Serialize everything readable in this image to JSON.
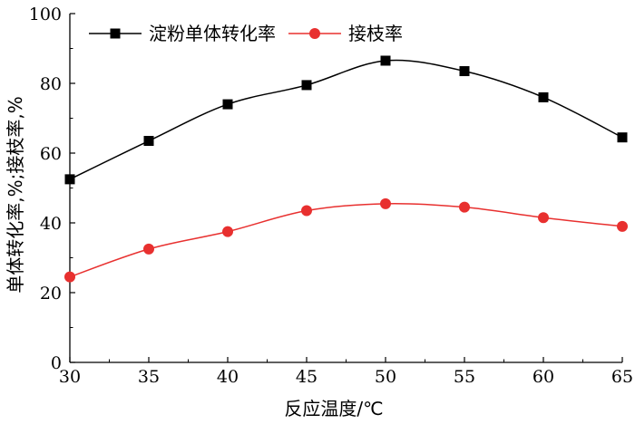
{
  "chart_data": {
    "type": "line",
    "x": [
      30,
      35,
      40,
      45,
      50,
      55,
      60,
      65
    ],
    "series": [
      {
        "name": "淀粉单体转化率",
        "values": [
          52.5,
          63.5,
          74.0,
          79.5,
          86.5,
          83.5,
          76.0,
          64.5
        ],
        "color": "#000000",
        "marker": "square"
      },
      {
        "name": "接枝率",
        "values": [
          24.5,
          32.5,
          37.5,
          43.5,
          45.5,
          44.5,
          41.5,
          39.0
        ],
        "color": "#e8302f",
        "marker": "circle"
      }
    ],
    "xlabel": "反应温度/℃",
    "ylabel": "单体转化率,%;接枝率,%",
    "xlim": [
      30,
      65
    ],
    "ylim": [
      0,
      100
    ],
    "xticks": [
      "30",
      "35",
      "40",
      "45",
      "50",
      "55",
      "60",
      "65"
    ],
    "yticks": [
      "0",
      "20",
      "40",
      "60",
      "80",
      "100"
    ],
    "grid": false,
    "legend_position": "top-left"
  }
}
